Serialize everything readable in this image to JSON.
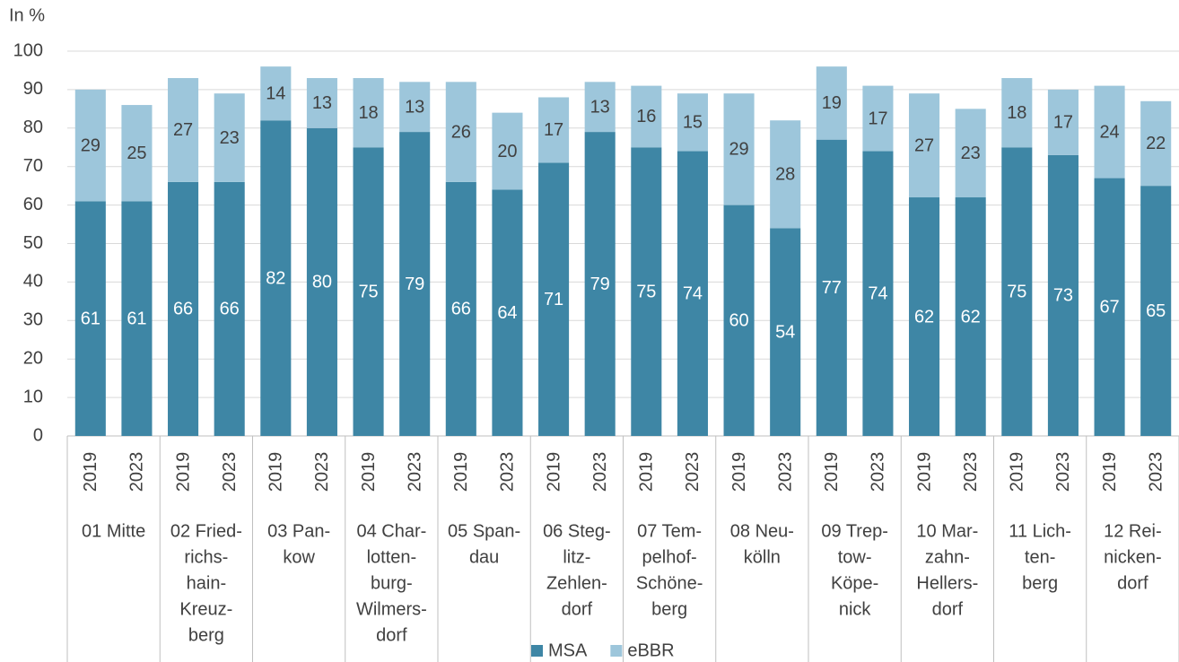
{
  "chart_data": {
    "type": "stacked_bar",
    "y_axis_label": "In %",
    "categories": [
      "2019",
      "2023",
      "2019",
      "2023",
      "2019",
      "2023",
      "2019",
      "2023",
      "2019",
      "2023",
      "2019",
      "2023",
      "2019",
      "2023",
      "2019",
      "2023",
      "2019",
      "2023",
      "2019",
      "2023",
      "2019",
      "2023",
      "2019",
      "2023"
    ],
    "groups": [
      [
        "01 Mitte"
      ],
      [
        "02 Fried-",
        "richs-",
        "hain-",
        "Kreuz-",
        "berg"
      ],
      [
        "03 Pan-",
        "kow"
      ],
      [
        "04 Char-",
        "lotten-",
        "burg-",
        "Wilmers-",
        "dorf"
      ],
      [
        "05 Span-",
        "dau"
      ],
      [
        "06 Steg-",
        "litz-",
        "Zehlen-",
        "dorf"
      ],
      [
        "07 Tem-",
        "pelhof-",
        "Schöne-",
        "berg"
      ],
      [
        "08 Neu-",
        "kölln"
      ],
      [
        "09 Trep-",
        "tow-",
        "Köpe-",
        "nick"
      ],
      [
        "10 Mar-",
        "zahn-",
        "Hellers-",
        "dorf"
      ],
      [
        "11 Lich-",
        "ten-",
        "berg"
      ],
      [
        "12 Rei-",
        "nicken-",
        "dorf"
      ]
    ],
    "series": [
      {
        "name": "MSA",
        "color": "#3e86a5",
        "values": [
          61,
          61,
          66,
          66,
          82,
          80,
          75,
          79,
          66,
          64,
          71,
          79,
          75,
          74,
          60,
          54,
          77,
          74,
          62,
          62,
          75,
          73,
          67,
          65
        ]
      },
      {
        "name": "eBBR",
        "color": "#9dc6db",
        "values": [
          29,
          25,
          27,
          23,
          14,
          13,
          18,
          13,
          26,
          20,
          17,
          13,
          16,
          15,
          29,
          28,
          19,
          17,
          27,
          23,
          18,
          17,
          24,
          22
        ]
      }
    ],
    "ylim": [
      0,
      100
    ],
    "yticks": [
      0,
      10,
      20,
      30,
      40,
      50,
      60,
      70,
      80,
      90,
      100
    ],
    "grid": true,
    "legend": "bottom"
  }
}
